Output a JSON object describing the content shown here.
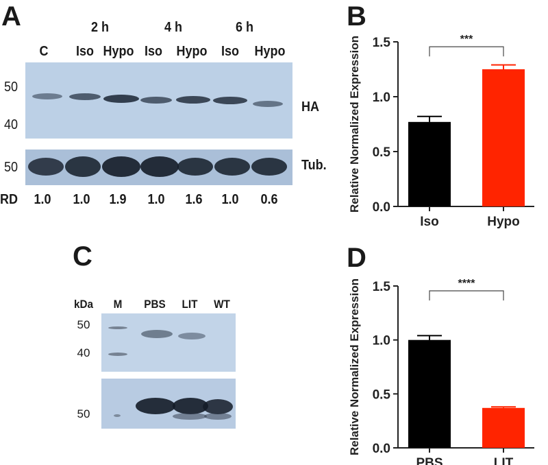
{
  "panel_a": {
    "letter": "A",
    "time_labels": [
      "2 h",
      "4 h",
      "6 h"
    ],
    "lane_labels": [
      "C",
      "Iso",
      "Hypo",
      "Iso",
      "Hypo",
      "Iso",
      "Hypo"
    ],
    "top_markers": [
      "50",
      "40"
    ],
    "bottom_marker": "50",
    "ha_label": "HA",
    "tub_label": "Tub.",
    "rd_label": "RD",
    "rd_values": [
      "1.0",
      "1.0",
      "1.9",
      "1.0",
      "1.6",
      "1.0",
      "0.6"
    ]
  },
  "panel_c": {
    "letter": "C",
    "kda_label": "kDa",
    "lane_labels": [
      "M",
      "PBS",
      "LIT",
      "WT"
    ],
    "top_markers": [
      "50",
      "40"
    ],
    "bottom_marker": "50"
  },
  "chart_data": [
    {
      "type": "bar",
      "panel": "B",
      "categories": [
        "Iso",
        "Hypo"
      ],
      "values": [
        0.77,
        1.25
      ],
      "errors": [
        0.05,
        0.04
      ],
      "colors": [
        "#000000",
        "#ff2400"
      ],
      "ylabel": "Relative Normalized Expression",
      "ylim": [
        0,
        1.5
      ],
      "yticks": [
        "0.0",
        "0.5",
        "1.0",
        "1.5"
      ],
      "significance": "***"
    },
    {
      "type": "bar",
      "panel": "D",
      "categories": [
        "PBS",
        "LIT"
      ],
      "values": [
        1.0,
        0.37
      ],
      "errors": [
        0.04,
        0.01
      ],
      "colors": [
        "#000000",
        "#ff2400"
      ],
      "ylabel": "Relative Normalized Expression",
      "ylim": [
        0,
        1.5
      ],
      "yticks": [
        "0.0",
        "0.5",
        "1.0",
        "1.5"
      ],
      "significance": "****"
    }
  ]
}
